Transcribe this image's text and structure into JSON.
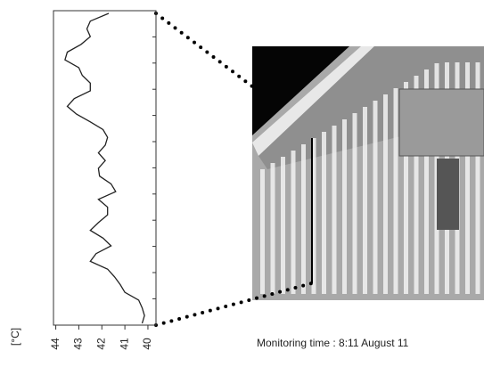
{
  "chart_data": {
    "type": "line",
    "x_label": "[°C]",
    "caption": "Monitoring time : 8:11 August 11",
    "values": [
      41.7,
      42.5,
      42.65,
      42.5,
      42.9,
      43.5,
      43.6,
      43.0,
      42.85,
      42.5,
      42.5,
      43.2,
      43.5,
      43.1,
      42.5,
      41.95,
      41.75,
      41.85,
      42.15,
      41.85,
      42.15,
      42.1,
      41.6,
      41.4,
      42.15,
      41.75,
      41.75,
      42.15,
      42.5,
      41.95,
      41.6,
      42.25,
      42.5,
      41.75,
      41.45,
      41.2,
      41.0,
      40.4,
      40.25,
      40.15,
      40.25
    ],
    "color": "#222222",
    "xlim": [
      44.1,
      39.65
    ],
    "xticks": [
      44,
      43,
      42,
      41,
      40
    ]
  }
}
